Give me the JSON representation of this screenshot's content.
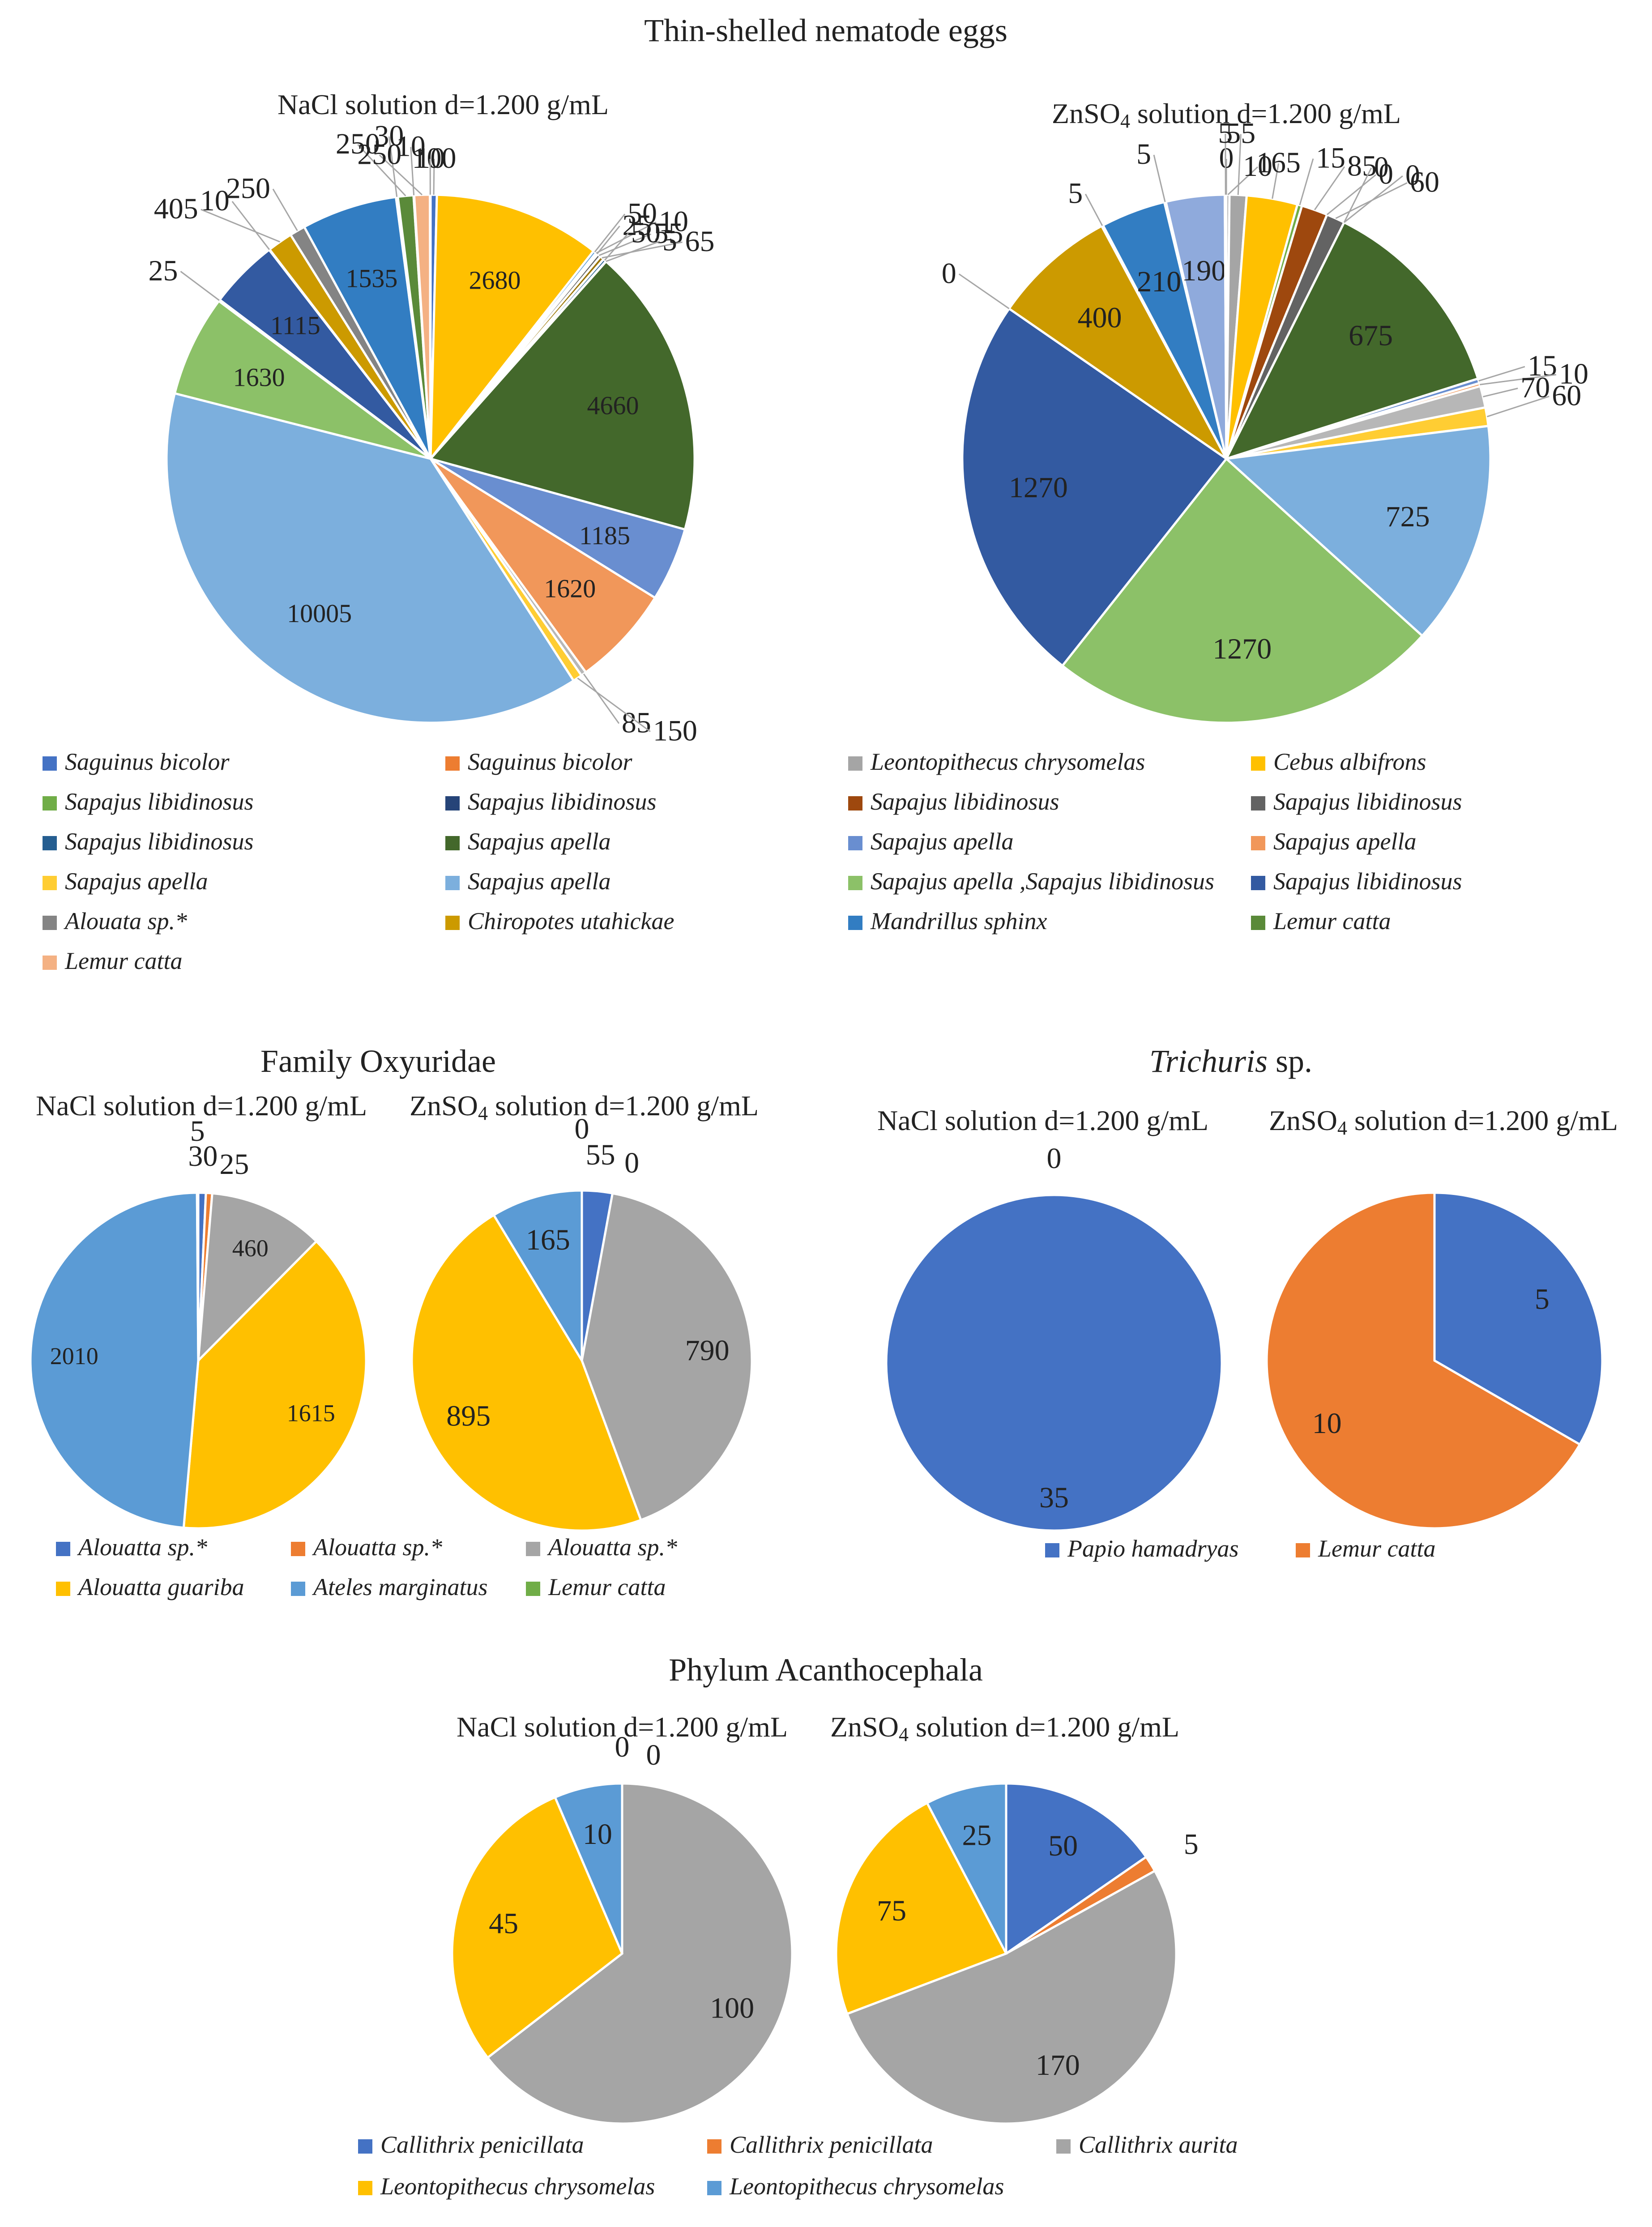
{
  "palette": [
    "#4472c4",
    "#ed7d31",
    "#a5a5a5",
    "#ffc000",
    "#5b9bd5",
    "#70ad47",
    "#264478",
    "#9e480e",
    "#636363",
    "#997300",
    "#255e91",
    "#43682b",
    "#698ed0",
    "#f1975a",
    "#b7b7b7",
    "#ffcd33",
    "#7cafdd",
    "#8cc168",
    "#335aa1",
    "#d26012",
    "#848484",
    "#cc9a00",
    "#327dc2",
    "#5a8a39",
    "#8faadc",
    "#f4b183"
  ],
  "sections": [
    {
      "title_parts": [
        {
          "text": "Thin-shelled nematode eggs",
          "italic": false
        }
      ]
    },
    {
      "title_parts": [
        {
          "text": "Family Oxyuridae",
          "italic": false
        }
      ]
    },
    {
      "title_parts": [
        {
          "text": "Trichuris",
          "italic": true
        },
        {
          "text": " sp.",
          "italic": false
        }
      ]
    },
    {
      "title_parts": [
        {
          "text": "Phylum Acanthocephala",
          "italic": false
        }
      ]
    }
  ],
  "chart_data": [
    {
      "type": "pie",
      "section": "Thin-shelled nematode eggs",
      "title": "NaCl solution d=1.200 g/mL",
      "title_parts": [
        {
          "t": "NaCl solution d=1.200 g/mL",
          "sub": false
        }
      ],
      "slices": [
        {
          "value": 100,
          "color_index": 0,
          "label": "100"
        },
        {
          "value": 2680,
          "color_index": 3,
          "label": "2680"
        },
        {
          "value": 50,
          "color_index": 4,
          "label": "50"
        },
        {
          "value": 10,
          "color_index": 6,
          "label": "10"
        },
        {
          "value": 25,
          "color_index": 7,
          "label": "25"
        },
        {
          "value": 55,
          "color_index": 8,
          "label": "55"
        },
        {
          "value": 65,
          "color_index": 9,
          "label": "65"
        },
        {
          "value": 50,
          "color_index": 10,
          "label": "50"
        },
        {
          "value": 5,
          "color_index": 0,
          "label": "5"
        },
        {
          "value": 4660,
          "color_index": 11,
          "label": "4660"
        },
        {
          "value": 1185,
          "color_index": 12,
          "label": "1185"
        },
        {
          "value": 1620,
          "color_index": 13,
          "label": "1620"
        },
        {
          "value": 85,
          "color_index": 14,
          "label": "85"
        },
        {
          "value": 150,
          "color_index": 15,
          "label": "150"
        },
        {
          "value": 10005,
          "color_index": 16,
          "label": "10005"
        },
        {
          "value": 1630,
          "color_index": 17,
          "label": "1630"
        },
        {
          "value": 25,
          "color_index": 18,
          "label": "25"
        },
        {
          "value": 1115,
          "color_index": 18,
          "label": "1115"
        },
        {
          "value": 10,
          "color_index": 19,
          "label": "10"
        },
        {
          "value": 405,
          "color_index": 21,
          "label": "405"
        },
        {
          "value": 250,
          "color_index": 20,
          "label": "250"
        },
        {
          "value": 1535,
          "color_index": 22,
          "label": "1535"
        },
        {
          "value": 30,
          "color_index": 20,
          "label": "30"
        },
        {
          "value": 250,
          "color_index": 23,
          "label": "250"
        },
        {
          "value": 10,
          "color_index": 24,
          "label": "10"
        },
        {
          "value": 250,
          "color_index": 25,
          "label": "250"
        },
        {
          "value": 10,
          "color_index": 20,
          "label": "10"
        }
      ]
    },
    {
      "type": "pie",
      "section": "Thin-shelled nematode eggs",
      "title": "ZnSO4 solution d=1.200 g/mL",
      "title_parts": [
        {
          "t": "ZnSO",
          "sub": false
        },
        {
          "t": "4",
          "sub": true
        },
        {
          "t": " solution d=1.200 g/mL",
          "sub": false
        }
      ],
      "slices": [
        {
          "value": 0,
          "color_index": 0,
          "label": "0"
        },
        {
          "value": 10,
          "color_index": 2,
          "label": "10"
        },
        {
          "value": 55,
          "color_index": 2,
          "label": "55"
        },
        {
          "value": 165,
          "color_index": 3,
          "label": "165"
        },
        {
          "value": 15,
          "color_index": 5,
          "label": "15"
        },
        {
          "value": 85,
          "color_index": 7,
          "label": "85"
        },
        {
          "value": 0,
          "color_index": 7,
          "label": "0"
        },
        {
          "value": 60,
          "color_index": 8,
          "label": "60"
        },
        {
          "value": 0,
          "color_index": 8,
          "label": "0"
        },
        {
          "value": 0,
          "color_index": 9,
          "label": "0"
        },
        {
          "value": 675,
          "color_index": 11,
          "label": "675"
        },
        {
          "value": 15,
          "color_index": 12,
          "label": "15"
        },
        {
          "value": 10,
          "color_index": 13,
          "label": "10"
        },
        {
          "value": 70,
          "color_index": 14,
          "label": "70"
        },
        {
          "value": 60,
          "color_index": 15,
          "label": "60"
        },
        {
          "value": 725,
          "color_index": 16,
          "label": "725"
        },
        {
          "value": 1270,
          "color_index": 17,
          "label": "1270"
        },
        {
          "value": 1270,
          "color_index": 18,
          "label": "1270"
        },
        {
          "value": 0,
          "color_index": 19,
          "label": "0"
        },
        {
          "value": 400,
          "color_index": 21,
          "label": "400"
        },
        {
          "value": 5,
          "color_index": 20,
          "label": "5"
        },
        {
          "value": 210,
          "color_index": 22,
          "label": "210"
        },
        {
          "value": 5,
          "color_index": 23,
          "label": "5"
        },
        {
          "value": 190,
          "color_index": 24,
          "label": "190"
        },
        {
          "value": 5,
          "color_index": 24,
          "label": "5"
        }
      ]
    },
    {
      "type": "pie",
      "section": "Family Oxyuridae",
      "title": "NaCl solution d=1.200 g/mL",
      "title_parts": [
        {
          "t": "NaCl solution d=1.200 g/mL",
          "sub": false
        }
      ],
      "slices": [
        {
          "value": 30,
          "color_index": 0,
          "label": "30"
        },
        {
          "value": 25,
          "color_index": 1,
          "label": "25"
        },
        {
          "value": 460,
          "color_index": 2,
          "label": "460"
        },
        {
          "value": 1615,
          "color_index": 3,
          "label": "1615"
        },
        {
          "value": 2010,
          "color_index": 4,
          "label": "2010"
        },
        {
          "value": 5,
          "color_index": 5,
          "label": "5"
        }
      ]
    },
    {
      "type": "pie",
      "section": "Family Oxyuridae",
      "title": "ZnSO4 solution d=1.200 g/mL",
      "title_parts": [
        {
          "t": "ZnSO",
          "sub": false
        },
        {
          "t": "4",
          "sub": true
        },
        {
          "t": " solution d=1.200 g/mL",
          "sub": false
        }
      ],
      "slices": [
        {
          "value": 55,
          "color_index": 0,
          "label": "55"
        },
        {
          "value": 0,
          "color_index": 1,
          "label": "0"
        },
        {
          "value": 790,
          "color_index": 2,
          "label": "790"
        },
        {
          "value": 895,
          "color_index": 3,
          "label": "895"
        },
        {
          "value": 165,
          "color_index": 4,
          "label": "165"
        },
        {
          "value": 0,
          "color_index": 5,
          "label": "0"
        }
      ]
    },
    {
      "type": "pie",
      "section": "Trichuris sp.",
      "title": "NaCl solution d=1.200 g/mL",
      "title_parts": [
        {
          "t": "NaCl solution d=1.200 g/mL",
          "sub": false
        }
      ],
      "slices": [
        {
          "value": 35,
          "color_index": 0,
          "label": "35"
        },
        {
          "value": 0,
          "color_index": 1,
          "label": "0"
        }
      ]
    },
    {
      "type": "pie",
      "section": "Trichuris sp.",
      "title": "ZnSO4 solution d=1.200 g/mL",
      "title_parts": [
        {
          "t": "ZnSO",
          "sub": false
        },
        {
          "t": "4",
          "sub": true
        },
        {
          "t": " solution d=1.200 g/mL",
          "sub": false
        }
      ],
      "slices": [
        {
          "value": 5,
          "color_index": 0,
          "label": "5"
        },
        {
          "value": 10,
          "color_index": 1,
          "label": "10"
        }
      ]
    },
    {
      "type": "pie",
      "section": "Phylum Acanthocephala",
      "title": "NaCl solution d=1.200 g/mL",
      "title_parts": [
        {
          "t": "NaCl solution d=1.200 g/mL",
          "sub": false
        }
      ],
      "slices": [
        {
          "value": 0,
          "color_index": 0,
          "label": "0"
        },
        {
          "value": 0,
          "color_index": 1,
          "label": "0"
        },
        {
          "value": 100,
          "color_index": 2,
          "label": "100"
        },
        {
          "value": 45,
          "color_index": 3,
          "label": "45"
        },
        {
          "value": 10,
          "color_index": 4,
          "label": "10"
        }
      ]
    },
    {
      "type": "pie",
      "section": "Phylum Acanthocephala",
      "title": "ZnSO4 solution d=1.200 g/mL",
      "title_parts": [
        {
          "t": "ZnSO",
          "sub": false
        },
        {
          "t": "4",
          "sub": true
        },
        {
          "t": " solution d=1.200 g/mL",
          "sub": false
        }
      ],
      "slices": [
        {
          "value": 50,
          "color_index": 0,
          "label": "50"
        },
        {
          "value": 5,
          "color_index": 1,
          "label": "5"
        },
        {
          "value": 170,
          "color_index": 2,
          "label": "170"
        },
        {
          "value": 75,
          "color_index": 3,
          "label": "75"
        },
        {
          "value": 25,
          "color_index": 4,
          "label": "25"
        }
      ]
    }
  ],
  "legends": [
    {
      "section": "Thin-shelled nematode eggs",
      "items": [
        {
          "label": "Saguinus bicolor",
          "color_index": 0
        },
        {
          "label": "Saguinus bicolor",
          "color_index": 1
        },
        {
          "label": "Leontopithecus chrysomelas",
          "color_index": 2
        },
        {
          "label": "Cebus albifrons",
          "color_index": 3
        },
        {
          "label": "Sapajus libidinosus",
          "color_index": 5
        },
        {
          "label": "Sapajus libidinosus",
          "color_index": 6
        },
        {
          "label": "Sapajus libidinosus",
          "color_index": 7
        },
        {
          "label": "Sapajus libidinosus",
          "color_index": 8
        },
        {
          "label": "Sapajus libidinosus",
          "color_index": 10
        },
        {
          "label": "Sapajus apella",
          "color_index": 11
        },
        {
          "label": "Sapajus apella",
          "color_index": 12
        },
        {
          "label": "Sapajus apella",
          "color_index": 13
        },
        {
          "label": "Sapajus apella",
          "color_index": 15
        },
        {
          "label": "Sapajus apella",
          "color_index": 16
        },
        {
          "label": "Sapajus apella ,Sapajus libidinosus",
          "color_index": 17
        },
        {
          "label": "Sapajus libidinosus",
          "color_index": 18
        },
        {
          "label": "Alouata sp.*",
          "color_index": 20
        },
        {
          "label": "Chiropotes utahickae",
          "color_index": 21
        },
        {
          "label": "Mandrillus sphinx",
          "color_index": 22
        },
        {
          "label": "Lemur catta",
          "color_index": 23
        },
        {
          "label": "Lemur catta",
          "color_index": 25
        }
      ]
    },
    {
      "section": "Family Oxyuridae",
      "items": [
        {
          "label": "Alouatta sp.*",
          "color_index": 0
        },
        {
          "label": "Alouatta sp.*",
          "color_index": 1
        },
        {
          "label": "Alouatta sp.*",
          "color_index": 2
        },
        {
          "label": "Alouatta guariba",
          "color_index": 3
        },
        {
          "label": "Ateles marginatus",
          "color_index": 4
        },
        {
          "label": "Lemur catta",
          "color_index": 5
        }
      ]
    },
    {
      "section": "Trichuris sp.",
      "items": [
        {
          "label": "Papio hamadryas",
          "color_index": 0
        },
        {
          "label": "Lemur catta",
          "color_index": 1
        }
      ]
    },
    {
      "section": "Phylum Acanthocephala",
      "items": [
        {
          "label": "Callithrix penicillata",
          "color_index": 0
        },
        {
          "label": "Callithrix penicillata",
          "color_index": 1
        },
        {
          "label": "Callithrix aurita",
          "color_index": 2
        },
        {
          "label": "Leontopithecus chrysomelas",
          "color_index": 3
        },
        {
          "label": "Leontopithecus chrysomelas",
          "color_index": 4
        }
      ]
    }
  ]
}
